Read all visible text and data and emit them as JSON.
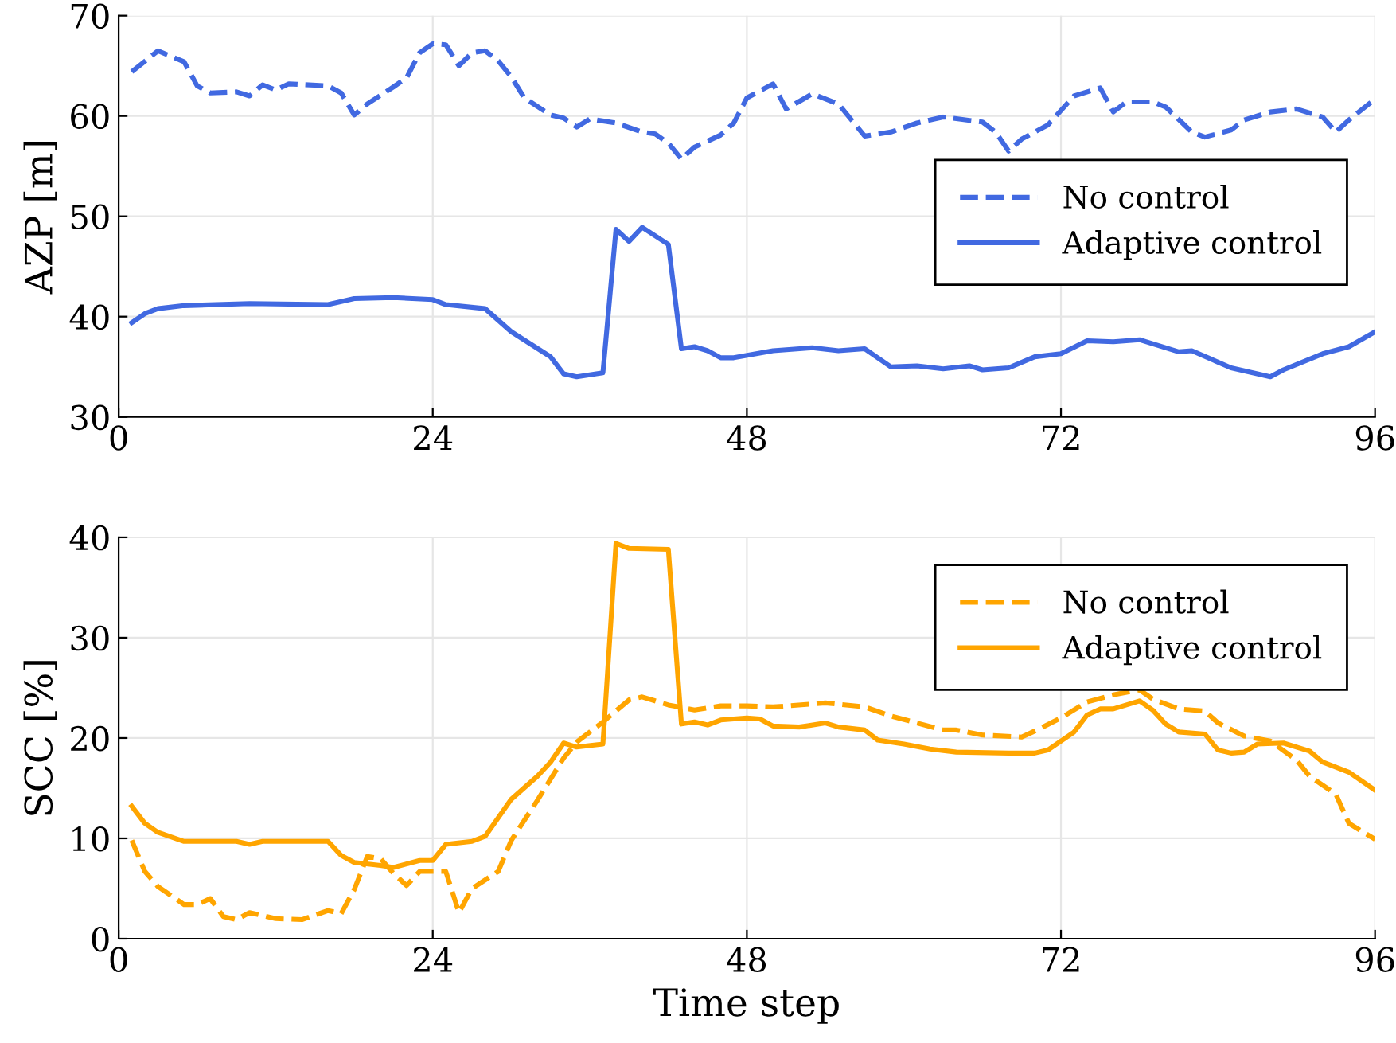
{
  "chart_data": [
    {
      "type": "line",
      "ylabel": "AZP [m]",
      "xlim": [
        0,
        96
      ],
      "xticks": [
        0,
        24,
        48,
        72,
        96
      ],
      "ylim": [
        30,
        70
      ],
      "yticks": [
        30,
        40,
        50,
        60,
        70
      ],
      "grid": true,
      "legend": "right",
      "series": [
        {
          "name": "No control",
          "color": "#4169e1",
          "line_style": "dashed",
          "x": [
            1,
            3,
            5,
            6,
            7,
            9,
            10,
            11,
            12,
            13,
            16,
            17,
            18,
            19,
            21,
            22,
            23,
            24,
            25,
            26,
            27,
            28,
            29,
            30,
            31,
            33,
            34,
            35,
            36,
            38,
            40,
            41,
            42,
            43,
            44,
            46,
            47,
            48,
            50,
            51,
            53,
            55,
            57,
            59,
            61,
            63,
            66,
            67,
            68,
            69,
            71,
            73,
            75,
            76,
            77,
            79,
            80,
            82,
            83,
            85,
            86,
            88,
            90,
            92,
            93,
            94,
            96
          ],
          "values": [
            64.4,
            66.5,
            65.4,
            63.0,
            62.3,
            62.4,
            62.0,
            63.1,
            62.6,
            63.2,
            63.0,
            62.3,
            60.1,
            61.2,
            62.9,
            63.8,
            66.3,
            67.2,
            67.1,
            65.0,
            66.3,
            66.5,
            65.5,
            63.9,
            61.8,
            60.1,
            59.8,
            58.9,
            59.7,
            59.3,
            58.4,
            58.2,
            57.3,
            55.7,
            56.9,
            58.1,
            59.3,
            61.8,
            63.2,
            60.7,
            62.2,
            61.2,
            58.0,
            58.4,
            59.3,
            59.9,
            59.4,
            58.4,
            56.5,
            57.7,
            59.1,
            62.0,
            62.8,
            60.4,
            61.4,
            61.4,
            60.9,
            58.4,
            57.9,
            58.6,
            59.6,
            60.4,
            60.7,
            59.9,
            58.4,
            59.6,
            61.7
          ]
        },
        {
          "name": "Adaptive control",
          "color": "#4169e1",
          "line_style": "solid",
          "x": [
            1,
            2,
            3,
            5,
            10,
            16,
            18,
            21,
            24,
            25,
            28,
            30,
            33,
            34,
            35,
            37,
            38,
            39,
            40,
            42,
            43,
            44,
            45,
            46,
            47,
            50,
            53,
            55,
            57,
            59,
            61,
            63,
            65,
            66,
            68,
            70,
            72,
            74,
            76,
            78,
            81,
            82,
            85,
            88,
            89,
            92,
            94,
            96
          ],
          "values": [
            39.4,
            40.3,
            40.8,
            41.1,
            41.3,
            41.2,
            41.8,
            41.9,
            41.7,
            41.2,
            40.8,
            38.5,
            36.0,
            34.3,
            34.0,
            34.4,
            48.7,
            47.5,
            48.9,
            47.2,
            36.8,
            37.0,
            36.6,
            35.9,
            35.9,
            36.6,
            36.9,
            36.6,
            36.8,
            35.0,
            35.1,
            34.8,
            35.1,
            34.7,
            34.9,
            36.0,
            36.3,
            37.6,
            37.5,
            37.7,
            36.5,
            36.6,
            34.9,
            34.0,
            34.7,
            36.3,
            37.0,
            38.5
          ]
        }
      ]
    },
    {
      "type": "line",
      "xlabel": "Time step",
      "ylabel": "SCC [%]",
      "xlim": [
        0,
        96
      ],
      "xticks": [
        0,
        24,
        48,
        72,
        96
      ],
      "ylim": [
        0,
        40
      ],
      "yticks": [
        0,
        10,
        20,
        30,
        40
      ],
      "grid": true,
      "legend": "top right",
      "series": [
        {
          "name": "No control",
          "color": "#ffa500",
          "line_style": "dashed",
          "x": [
            1,
            2,
            3,
            5,
            6,
            7,
            8,
            9,
            10,
            12,
            14,
            16,
            17,
            18,
            19,
            20,
            21,
            22,
            23,
            25,
            26,
            27,
            29,
            30,
            32,
            34,
            35,
            37,
            39,
            40,
            42,
            44,
            46,
            48,
            50,
            51,
            54,
            57,
            59,
            61,
            63,
            64,
            66,
            69,
            70,
            72,
            74,
            76,
            78,
            79,
            81,
            83,
            84,
            86,
            88,
            90,
            91,
            93,
            94,
            96
          ],
          "values": [
            9.8,
            6.7,
            5.2,
            3.4,
            3.4,
            4.0,
            2.2,
            1.9,
            2.6,
            2.0,
            1.9,
            2.8,
            2.5,
            4.9,
            8.2,
            8.0,
            6.5,
            5.3,
            6.7,
            6.7,
            2.6,
            5.0,
            6.7,
            9.8,
            13.8,
            18.0,
            19.6,
            21.6,
            23.8,
            24.1,
            23.3,
            22.8,
            23.2,
            23.2,
            23.1,
            23.2,
            23.5,
            23.1,
            22.2,
            21.5,
            20.8,
            20.8,
            20.3,
            20.1,
            20.7,
            22.0,
            23.6,
            24.3,
            24.8,
            23.9,
            22.9,
            22.7,
            21.5,
            20.2,
            19.7,
            17.8,
            16.2,
            14.4,
            11.5,
            9.9
          ]
        },
        {
          "name": "Adaptive control",
          "color": "#ffa500",
          "line_style": "solid",
          "x": [
            1,
            2,
            3,
            5,
            9,
            10,
            11,
            16,
            17,
            18,
            20,
            21,
            23,
            24,
            25,
            27,
            28,
            30,
            32,
            33,
            34,
            35,
            37,
            38,
            39,
            42,
            43,
            44,
            45,
            46,
            48,
            49,
            50,
            52,
            54,
            55,
            57,
            58,
            60,
            62,
            64,
            68,
            70,
            71,
            73,
            74,
            75,
            76,
            78,
            79,
            80,
            81,
            83,
            84,
            85,
            86,
            87,
            89,
            91,
            92,
            94,
            96
          ],
          "values": [
            13.2,
            11.5,
            10.6,
            9.7,
            9.7,
            9.4,
            9.7,
            9.7,
            8.3,
            7.6,
            7.3,
            7.1,
            7.8,
            7.8,
            9.4,
            9.7,
            10.2,
            13.9,
            16.2,
            17.6,
            19.5,
            19.1,
            19.4,
            39.4,
            38.9,
            38.8,
            21.4,
            21.6,
            21.3,
            21.8,
            22.0,
            21.9,
            21.2,
            21.1,
            21.5,
            21.1,
            20.8,
            19.8,
            19.4,
            18.9,
            18.6,
            18.5,
            18.5,
            18.8,
            20.6,
            22.3,
            22.9,
            22.9,
            23.7,
            22.8,
            21.4,
            20.6,
            20.4,
            18.8,
            18.5,
            18.6,
            19.4,
            19.5,
            18.7,
            17.6,
            16.6,
            14.8
          ]
        }
      ]
    }
  ]
}
